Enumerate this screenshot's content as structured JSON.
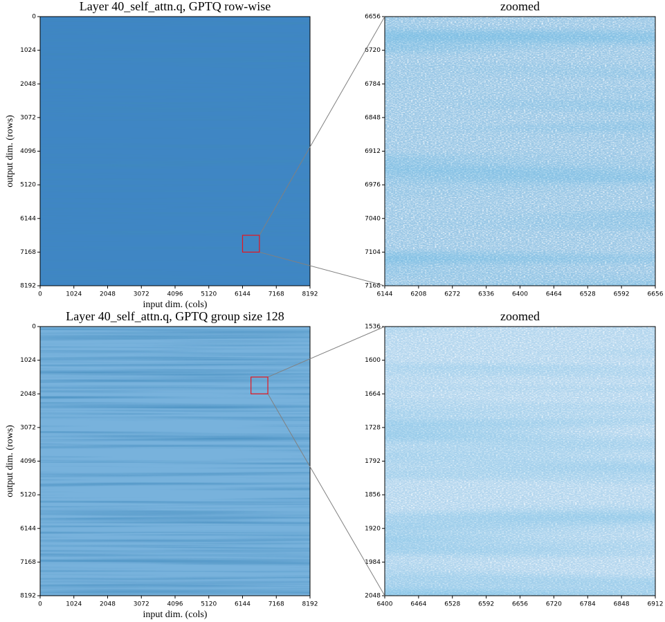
{
  "chart_data": [
    {
      "type": "heatmap",
      "title": "Layer 40_self_attn.q, GPTQ row-wise",
      "xlabel": "input dim. (cols)",
      "ylabel": "output dim. (rows)",
      "color": "#3f86c4",
      "xlim": [
        0,
        8192
      ],
      "ylim": [
        8192,
        0
      ],
      "xticks": [
        0,
        1024,
        2048,
        3072,
        4096,
        5120,
        6144,
        7168,
        8192
      ],
      "yticks": [
        0,
        1024,
        2048,
        3072,
        4096,
        5120,
        6144,
        7168,
        8192
      ]
    },
    {
      "type": "heatmap",
      "title": "zoomed",
      "color": "#9cc8e6",
      "xlim": [
        6144,
        6656
      ],
      "ylim": [
        7168,
        6656
      ],
      "xticks": [
        6144,
        6208,
        6272,
        6336,
        6400,
        6464,
        6528,
        6592,
        6656
      ],
      "yticks": [
        6656,
        6720,
        6784,
        6848,
        6912,
        6976,
        7040,
        7104,
        7168
      ]
    },
    {
      "type": "heatmap",
      "title": "Layer 40_self_attn.q, GPTQ group size 128",
      "xlabel": "input dim. (cols)",
      "ylabel": "output dim. (rows)",
      "color": "#78b2dc",
      "xlim": [
        0,
        8192
      ],
      "ylim": [
        8192,
        0
      ],
      "xticks": [
        0,
        1024,
        2048,
        3072,
        4096,
        5120,
        6144,
        7168,
        8192
      ],
      "yticks": [
        0,
        1024,
        2048,
        3072,
        4096,
        5120,
        6144,
        7168,
        8192
      ]
    },
    {
      "type": "heatmap",
      "title": "zoomed",
      "color": "#b4d6ee",
      "xlim": [
        6400,
        6912
      ],
      "ylim": [
        2048,
        1536
      ],
      "xticks": [
        6400,
        6464,
        6528,
        6592,
        6656,
        6720,
        6784,
        6848,
        6912
      ],
      "yticks": [
        1536,
        1600,
        1664,
        1728,
        1792,
        1856,
        1920,
        1984,
        2048
      ]
    }
  ]
}
